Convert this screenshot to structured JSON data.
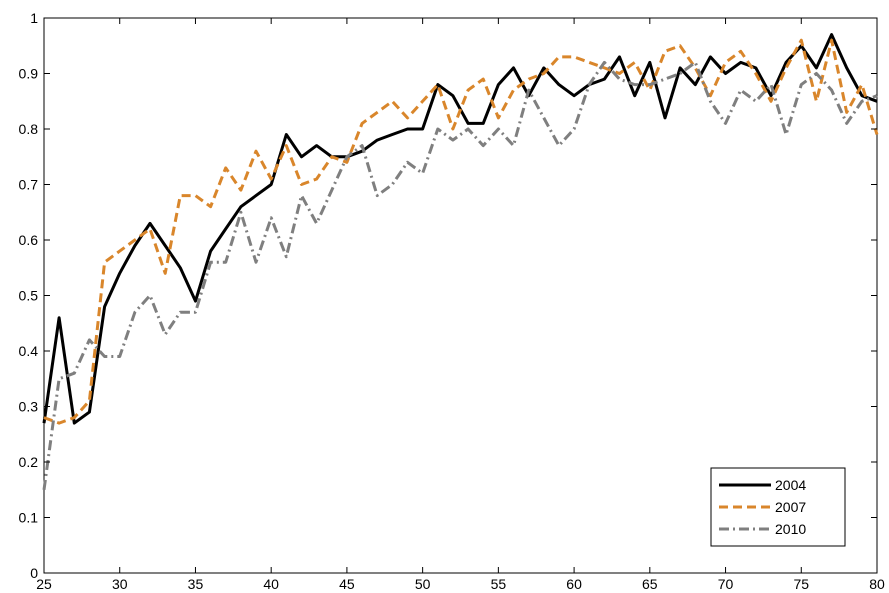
{
  "chart_data": {
    "type": "line",
    "title": "",
    "xlabel": "",
    "ylabel": "",
    "xlim": [
      25,
      80
    ],
    "ylim": [
      0,
      1
    ],
    "grid": false,
    "legend_position": "bottom-right",
    "xticks": [
      25,
      30,
      35,
      40,
      45,
      50,
      55,
      60,
      65,
      70,
      75,
      80
    ],
    "yticks": [
      0,
      0.1,
      0.2,
      0.3,
      0.4,
      0.5,
      0.6,
      0.7,
      0.8,
      0.9,
      1
    ],
    "x": [
      25,
      26,
      27,
      28,
      29,
      30,
      31,
      32,
      33,
      34,
      35,
      36,
      37,
      38,
      39,
      40,
      41,
      42,
      43,
      44,
      45,
      46,
      47,
      48,
      49,
      50,
      51,
      52,
      53,
      54,
      55,
      56,
      57,
      58,
      59,
      60,
      61,
      62,
      63,
      64,
      65,
      66,
      67,
      68,
      69,
      70,
      71,
      72,
      73,
      74,
      75,
      76,
      77,
      78,
      79,
      80
    ],
    "series": [
      {
        "name": "2004",
        "color": "#000000",
        "dash": "solid",
        "values": [
          0.27,
          0.46,
          0.27,
          0.29,
          0.48,
          0.54,
          0.59,
          0.63,
          0.59,
          0.55,
          0.49,
          0.58,
          0.62,
          0.66,
          0.68,
          0.7,
          0.79,
          0.75,
          0.77,
          0.75,
          0.75,
          0.76,
          0.78,
          0.79,
          0.8,
          0.8,
          0.88,
          0.86,
          0.81,
          0.81,
          0.88,
          0.91,
          0.86,
          0.91,
          0.88,
          0.86,
          0.88,
          0.89,
          0.93,
          0.86,
          0.92,
          0.82,
          0.91,
          0.88,
          0.93,
          0.9,
          0.92,
          0.91,
          0.86,
          0.92,
          0.95,
          0.91,
          0.97,
          0.91,
          0.86,
          0.85
        ]
      },
      {
        "name": "2007",
        "color": "#d9862b",
        "dash": "dashed",
        "values": [
          0.28,
          0.27,
          0.28,
          0.31,
          0.56,
          0.58,
          0.6,
          0.62,
          0.54,
          0.68,
          0.68,
          0.66,
          0.73,
          0.69,
          0.76,
          0.71,
          0.77,
          0.7,
          0.71,
          0.75,
          0.74,
          0.81,
          0.83,
          0.85,
          0.82,
          0.85,
          0.88,
          0.8,
          0.87,
          0.89,
          0.82,
          0.87,
          0.89,
          0.9,
          0.93,
          0.93,
          0.92,
          0.91,
          0.9,
          0.92,
          0.87,
          0.94,
          0.95,
          0.91,
          0.86,
          0.92,
          0.94,
          0.9,
          0.85,
          0.91,
          0.96,
          0.85,
          0.96,
          0.83,
          0.88,
          0.79
        ]
      },
      {
        "name": "2010",
        "color": "#7f7f7f",
        "dash": "dashdot",
        "values": [
          0.15,
          0.35,
          0.36,
          0.42,
          0.39,
          0.39,
          0.47,
          0.5,
          0.43,
          0.47,
          0.47,
          0.56,
          0.56,
          0.65,
          0.56,
          0.64,
          0.57,
          0.68,
          0.63,
          0.69,
          0.75,
          0.77,
          0.68,
          0.7,
          0.74,
          0.72,
          0.8,
          0.78,
          0.8,
          0.77,
          0.8,
          0.77,
          0.87,
          0.82,
          0.77,
          0.8,
          0.88,
          0.92,
          0.89,
          0.88,
          0.88,
          0.89,
          0.9,
          0.92,
          0.85,
          0.81,
          0.87,
          0.85,
          0.88,
          0.79,
          0.88,
          0.9,
          0.87,
          0.81,
          0.85,
          0.86
        ]
      }
    ]
  }
}
